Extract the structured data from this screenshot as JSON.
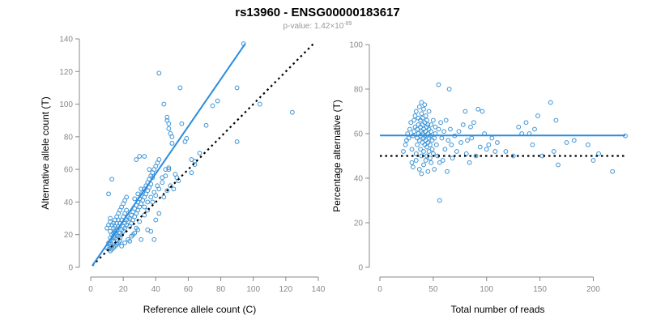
{
  "figure": {
    "title": "rs13960 - ENSG00000183617",
    "subtitle_prefix": "p-value: 1.42×10",
    "subtitle_exponent": "-89"
  },
  "colors": {
    "points": "#3b93d6",
    "fit_line": "#2a8be0",
    "reference_line": "#000000",
    "axis": "#888888"
  },
  "chart_data": [
    {
      "type": "scatter",
      "xlabel": "Reference allele count (C)",
      "ylabel": "Alternative allele count (T)",
      "xlim": [
        0,
        140
      ],
      "ylim": [
        0,
        140
      ],
      "xticks": [
        0,
        20,
        40,
        60,
        80,
        100,
        120,
        140
      ],
      "yticks": [
        0,
        20,
        40,
        60,
        80,
        100,
        120,
        140
      ],
      "fit_line": [
        [
          1,
          1
        ],
        [
          95,
          137
        ]
      ],
      "reference_line": [
        [
          1,
          1
        ],
        [
          137,
          137
        ]
      ],
      "points": [
        [
          11,
          45
        ],
        [
          13,
          54
        ],
        [
          12,
          30
        ],
        [
          11,
          26
        ],
        [
          10,
          24
        ],
        [
          12,
          22
        ],
        [
          13,
          20
        ],
        [
          14,
          19
        ],
        [
          15,
          18
        ],
        [
          16,
          17
        ],
        [
          11,
          15
        ],
        [
          12,
          14
        ],
        [
          13,
          13
        ],
        [
          14,
          12
        ],
        [
          10,
          12
        ],
        [
          11,
          11
        ],
        [
          12,
          10
        ],
        [
          13,
          11
        ],
        [
          15,
          13
        ],
        [
          16,
          14
        ],
        [
          17,
          15
        ],
        [
          18,
          16
        ],
        [
          14,
          16
        ],
        [
          15,
          21
        ],
        [
          16,
          23
        ],
        [
          17,
          25
        ],
        [
          18,
          27
        ],
        [
          19,
          29
        ],
        [
          20,
          31
        ],
        [
          21,
          33
        ],
        [
          22,
          35
        ],
        [
          14,
          27
        ],
        [
          15,
          29
        ],
        [
          16,
          31
        ],
        [
          17,
          33
        ],
        [
          18,
          35
        ],
        [
          19,
          37
        ],
        [
          20,
          39
        ],
        [
          21,
          41
        ],
        [
          22,
          43
        ],
        [
          12,
          28
        ],
        [
          13,
          26
        ],
        [
          14,
          24
        ],
        [
          15,
          22
        ],
        [
          16,
          20
        ],
        [
          17,
          19
        ],
        [
          18,
          18
        ],
        [
          19,
          20
        ],
        [
          20,
          22
        ],
        [
          21,
          24
        ],
        [
          22,
          26
        ],
        [
          23,
          28
        ],
        [
          24,
          30
        ],
        [
          25,
          32
        ],
        [
          26,
          34
        ],
        [
          27,
          36
        ],
        [
          28,
          38
        ],
        [
          29,
          40
        ],
        [
          30,
          42
        ],
        [
          31,
          44
        ],
        [
          32,
          46
        ],
        [
          33,
          48
        ],
        [
          34,
          50
        ],
        [
          35,
          52
        ],
        [
          36,
          54
        ],
        [
          37,
          56
        ],
        [
          38,
          58
        ],
        [
          39,
          60
        ],
        [
          40,
          62
        ],
        [
          41,
          64
        ],
        [
          42,
          66
        ],
        [
          12,
          18
        ],
        [
          13,
          17
        ],
        [
          14,
          21
        ],
        [
          15,
          25
        ],
        [
          16,
          27
        ],
        [
          17,
          29
        ],
        [
          18,
          21
        ],
        [
          19,
          23
        ],
        [
          20,
          25
        ],
        [
          21,
          27
        ],
        [
          22,
          29
        ],
        [
          23,
          31
        ],
        [
          24,
          25
        ],
        [
          25,
          27
        ],
        [
          26,
          29
        ],
        [
          27,
          31
        ],
        [
          28,
          33
        ],
        [
          29,
          35
        ],
        [
          30,
          37
        ],
        [
          31,
          39
        ],
        [
          32,
          41
        ],
        [
          33,
          43
        ],
        [
          34,
          45
        ],
        [
          35,
          47
        ],
        [
          36,
          49
        ],
        [
          37,
          51
        ],
        [
          19,
          13
        ],
        [
          21,
          15
        ],
        [
          23,
          17
        ],
        [
          25,
          19
        ],
        [
          27,
          21
        ],
        [
          29,
          23
        ],
        [
          24,
          16
        ],
        [
          26,
          20
        ],
        [
          28,
          24
        ],
        [
          30,
          28
        ],
        [
          33,
          32
        ],
        [
          35,
          35
        ],
        [
          38,
          40
        ],
        [
          40,
          44
        ],
        [
          42,
          48
        ],
        [
          44,
          52
        ],
        [
          46,
          56
        ],
        [
          48,
          60
        ],
        [
          28,
          66
        ],
        [
          30,
          68
        ],
        [
          33,
          68
        ],
        [
          36,
          60
        ],
        [
          38,
          55
        ],
        [
          27,
          42
        ],
        [
          29,
          45
        ],
        [
          31,
          48
        ],
        [
          33,
          37
        ],
        [
          35,
          40
        ],
        [
          37,
          43
        ],
        [
          39,
          46
        ],
        [
          41,
          50
        ],
        [
          44,
          55
        ],
        [
          46,
          60
        ],
        [
          31,
          17
        ],
        [
          35,
          23
        ],
        [
          37,
          22
        ],
        [
          39,
          17
        ],
        [
          40,
          29
        ],
        [
          42,
          33
        ],
        [
          45,
          43
        ],
        [
          47,
          47
        ],
        [
          49,
          50
        ],
        [
          51,
          48
        ],
        [
          53,
          55
        ],
        [
          48,
          61
        ],
        [
          50,
          76
        ],
        [
          48,
          85
        ],
        [
          47,
          90
        ],
        [
          48,
          88
        ],
        [
          49,
          82
        ],
        [
          45,
          100
        ],
        [
          47,
          92
        ],
        [
          55,
          110
        ],
        [
          56,
          88
        ],
        [
          58,
          77
        ],
        [
          59,
          79
        ],
        [
          62,
          66
        ],
        [
          64,
          63
        ],
        [
          42,
          119
        ],
        [
          50,
          80
        ],
        [
          71,
          87
        ],
        [
          75,
          99
        ],
        [
          78,
          102
        ],
        [
          90,
          110
        ],
        [
          90,
          77
        ],
        [
          94,
          137
        ],
        [
          104,
          100
        ],
        [
          124,
          95
        ],
        [
          62,
          58
        ],
        [
          64,
          65
        ],
        [
          67,
          70
        ],
        [
          52,
          57
        ],
        [
          54,
          53
        ]
      ]
    },
    {
      "type": "scatter",
      "xlabel": "Total number of reads",
      "ylabel": "Percentage alternative (T)",
      "xlim": [
        0,
        230
      ],
      "ylim": [
        0,
        100
      ],
      "xticks": [
        0,
        50,
        100,
        150,
        200
      ],
      "yticks": [
        0,
        20,
        40,
        60,
        80,
        100
      ],
      "fit_line": [
        [
          0,
          59.2
        ],
        [
          230,
          59.2
        ]
      ],
      "reference_line": [
        [
          0,
          50
        ],
        [
          230,
          50
        ]
      ],
      "points": [
        [
          22,
          52
        ],
        [
          24,
          55
        ],
        [
          25,
          57
        ],
        [
          26,
          60
        ],
        [
          27,
          58
        ],
        [
          28,
          62
        ],
        [
          29,
          65
        ],
        [
          30,
          47
        ],
        [
          30,
          53
        ],
        [
          31,
          45
        ],
        [
          31,
          59
        ],
        [
          32,
          61
        ],
        [
          32,
          66
        ],
        [
          33,
          63
        ],
        [
          33,
          68
        ],
        [
          34,
          48
        ],
        [
          34,
          51
        ],
        [
          34,
          70
        ],
        [
          35,
          55
        ],
        [
          35,
          58
        ],
        [
          35,
          62
        ],
        [
          36,
          60
        ],
        [
          36,
          64
        ],
        [
          36,
          67
        ],
        [
          37,
          44
        ],
        [
          37,
          57
        ],
        [
          37,
          72
        ],
        [
          38,
          53
        ],
        [
          38,
          59
        ],
        [
          38,
          63
        ],
        [
          38,
          66
        ],
        [
          39,
          42
        ],
        [
          39,
          50
        ],
        [
          39,
          61
        ],
        [
          39,
          69
        ],
        [
          39,
          74
        ],
        [
          40,
          56
        ],
        [
          40,
          60
        ],
        [
          40,
          64
        ],
        [
          40,
          67
        ],
        [
          41,
          46
        ],
        [
          41,
          52
        ],
        [
          41,
          58
        ],
        [
          41,
          62
        ],
        [
          41,
          71
        ],
        [
          42,
          55
        ],
        [
          42,
          59
        ],
        [
          42,
          65
        ],
        [
          42,
          73
        ],
        [
          43,
          48
        ],
        [
          43,
          57
        ],
        [
          43,
          61
        ],
        [
          43,
          68
        ],
        [
          44,
          50
        ],
        [
          44,
          54
        ],
        [
          44,
          63
        ],
        [
          44,
          66
        ],
        [
          45,
          43
        ],
        [
          45,
          56
        ],
        [
          45,
          60
        ],
        [
          45,
          64
        ],
        [
          46,
          52
        ],
        [
          46,
          58
        ],
        [
          46,
          62
        ],
        [
          46,
          70
        ],
        [
          47,
          49
        ],
        [
          47,
          55
        ],
        [
          47,
          59
        ],
        [
          48,
          47
        ],
        [
          48,
          61
        ],
        [
          48,
          64
        ],
        [
          49,
          53
        ],
        [
          49,
          57
        ],
        [
          50,
          51
        ],
        [
          50,
          66
        ],
        [
          51,
          44
        ],
        [
          51,
          58
        ],
        [
          52,
          60
        ],
        [
          52,
          63
        ],
        [
          53,
          55
        ],
        [
          54,
          50
        ],
        [
          55,
          82
        ],
        [
          55,
          62
        ],
        [
          56,
          30
        ],
        [
          56,
          47
        ],
        [
          57,
          65
        ],
        [
          58,
          58
        ],
        [
          59,
          48
        ],
        [
          60,
          61
        ],
        [
          61,
          53
        ],
        [
          62,
          66
        ],
        [
          63,
          43
        ],
        [
          64,
          57
        ],
        [
          65,
          80
        ],
        [
          66,
          62
        ],
        [
          67,
          55
        ],
        [
          68,
          49
        ],
        [
          70,
          59
        ],
        [
          72,
          52
        ],
        [
          74,
          61
        ],
        [
          76,
          56
        ],
        [
          78,
          64
        ],
        [
          80,
          70
        ],
        [
          81,
          51
        ],
        [
          82,
          57
        ],
        [
          84,
          47
        ],
        [
          85,
          63
        ],
        [
          86,
          58
        ],
        [
          88,
          65
        ],
        [
          90,
          50
        ],
        [
          92,
          71
        ],
        [
          94,
          54
        ],
        [
          96,
          70
        ],
        [
          98,
          60
        ],
        [
          100,
          53
        ],
        [
          102,
          55
        ],
        [
          105,
          58
        ],
        [
          108,
          52
        ],
        [
          110,
          56
        ],
        [
          118,
          52
        ],
        [
          125,
          50
        ],
        [
          130,
          63
        ],
        [
          133,
          60
        ],
        [
          137,
          65
        ],
        [
          140,
          60
        ],
        [
          143,
          55
        ],
        [
          145,
          62
        ],
        [
          148,
          68
        ],
        [
          152,
          50
        ],
        [
          160,
          74
        ],
        [
          163,
          52
        ],
        [
          165,
          66
        ],
        [
          167,
          46
        ],
        [
          175,
          56
        ],
        [
          182,
          57
        ],
        [
          195,
          55
        ],
        [
          200,
          48
        ],
        [
          205,
          51
        ],
        [
          218,
          43
        ],
        [
          230,
          59
        ]
      ]
    }
  ]
}
